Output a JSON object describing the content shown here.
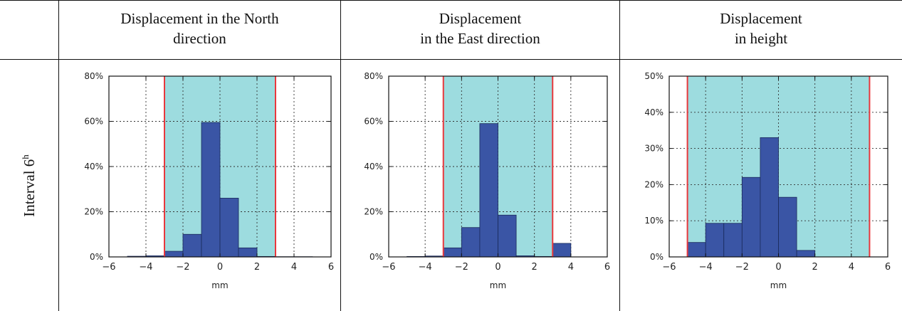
{
  "table": {
    "headers": [
      [
        "Displacement in the North",
        "direction"
      ],
      [
        "Displacement",
        "in the East direction"
      ],
      [
        "Displacement",
        "in height"
      ]
    ],
    "row_label": "Interval 6",
    "row_label_sup": "h"
  },
  "colors": {
    "bar": "#3a55a5",
    "bar_edge": "#1a2a5a",
    "band": "#9ddcdf",
    "limit_line": "#e8383d"
  },
  "chart_data": [
    {
      "type": "bar",
      "title": "",
      "xlabel": "mm",
      "ylabel": "",
      "xlim": [
        -6,
        6
      ],
      "ylim": [
        0,
        80
      ],
      "xticks": [
        "−6",
        "−4",
        "−2",
        "0",
        "2",
        "4",
        "6"
      ],
      "yticks": [
        "0%",
        "20%",
        "40%",
        "60%",
        "80%"
      ],
      "grid": true,
      "band": [
        -3,
        3
      ],
      "bin_edges": [
        -5,
        -4,
        -3,
        -2,
        -1,
        0,
        1,
        2,
        3,
        4,
        5
      ],
      "values": [
        0.3,
        0.5,
        2.5,
        10,
        59.5,
        26,
        4,
        0.2,
        0.1,
        0.1
      ]
    },
    {
      "type": "bar",
      "title": "",
      "xlabel": "mm",
      "ylabel": "",
      "xlim": [
        -6,
        6
      ],
      "ylim": [
        0,
        80
      ],
      "xticks": [
        "−6",
        "−4",
        "−2",
        "0",
        "2",
        "4",
        "6"
      ],
      "yticks": [
        "0%",
        "20%",
        "40%",
        "60%",
        "80%"
      ],
      "grid": true,
      "band": [
        -3,
        3
      ],
      "bin_edges": [
        -5,
        -4,
        -3,
        -2,
        -1,
        0,
        1,
        2,
        3,
        4,
        5
      ],
      "values": [
        0.2,
        0.4,
        4,
        13,
        59,
        18.5,
        0.5,
        0.2,
        6,
        0
      ]
    },
    {
      "type": "bar",
      "title": "",
      "xlabel": "mm",
      "ylabel": "",
      "xlim": [
        -6,
        6
      ],
      "ylim": [
        0,
        50
      ],
      "xticks": [
        "−6",
        "−4",
        "−2",
        "0",
        "2",
        "4",
        "6"
      ],
      "yticks": [
        "0%",
        "10%",
        "20%",
        "30%",
        "40%",
        "50%"
      ],
      "grid": true,
      "band": [
        -5,
        5
      ],
      "bin_edges": [
        -5,
        -4,
        -3,
        -2,
        -1,
        0,
        1,
        2
      ],
      "values": [
        4,
        9.3,
        9.3,
        22,
        33,
        16.5,
        1.8
      ]
    }
  ]
}
